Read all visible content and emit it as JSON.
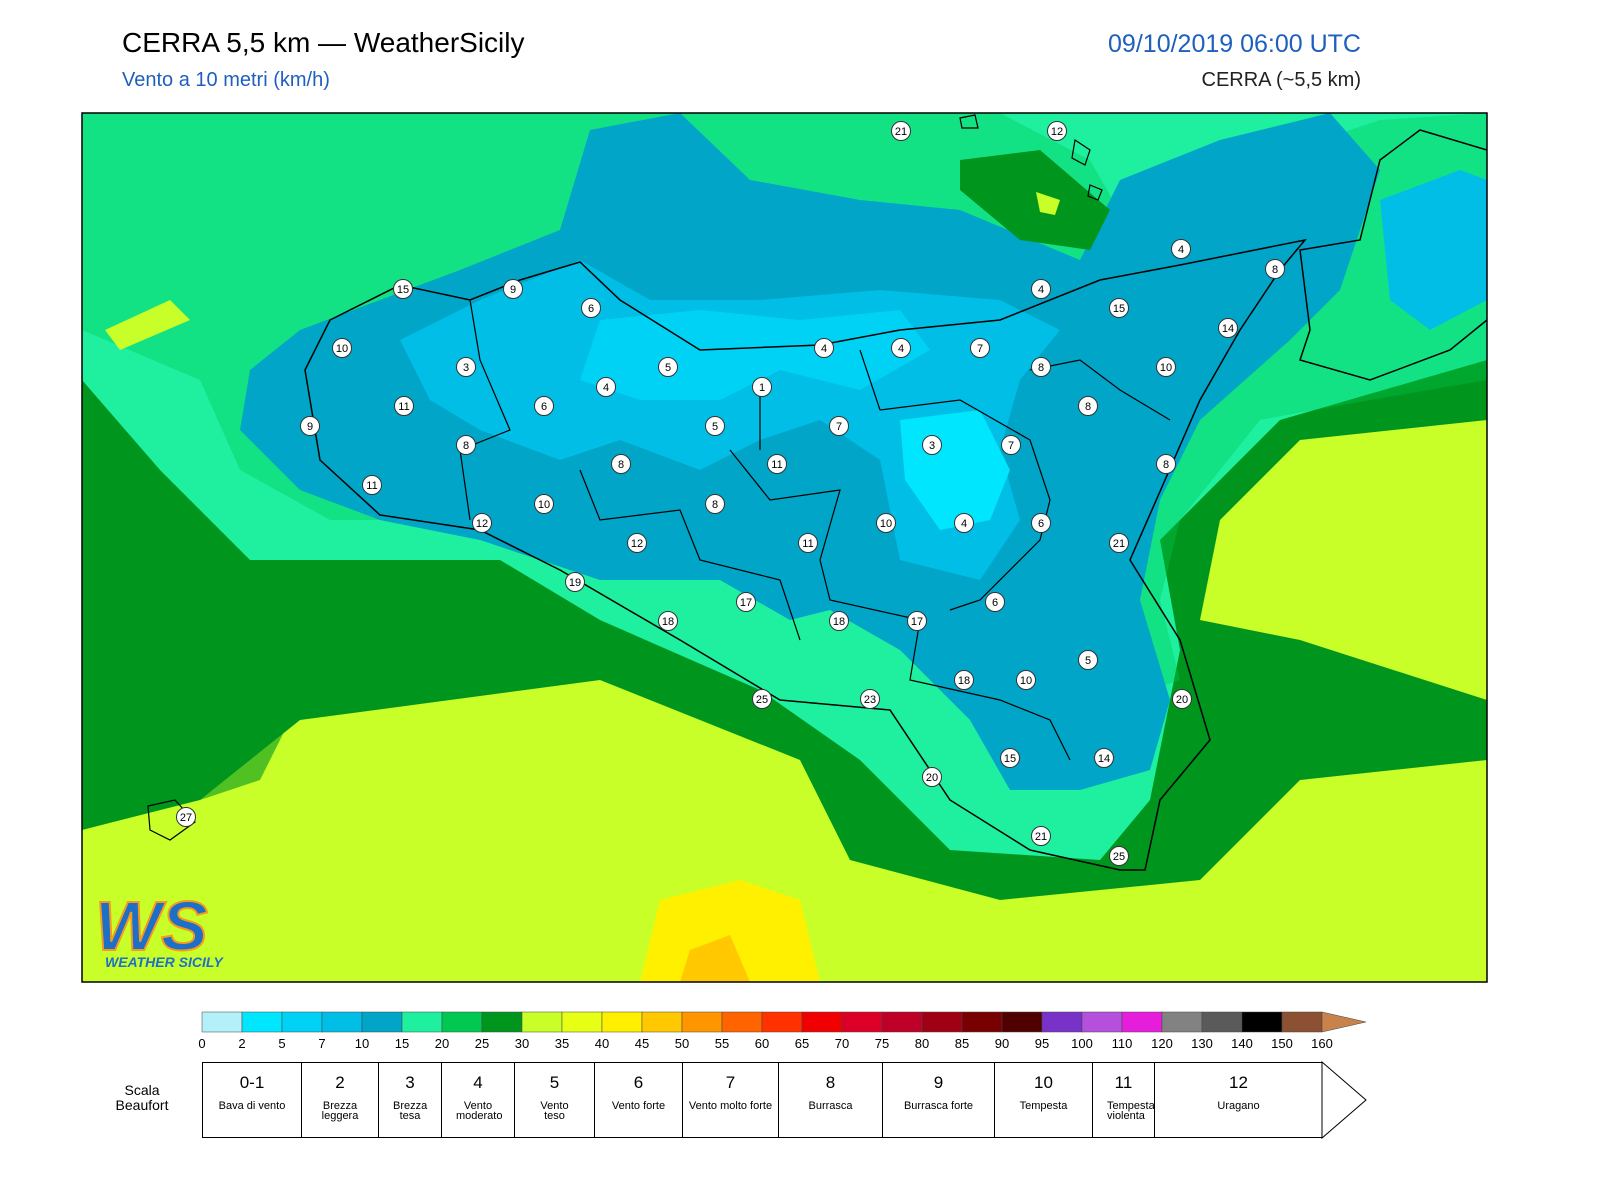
{
  "header": {
    "title": "CERRA 5,5 km — WeatherSicily",
    "subtitle": "Vento a 10 metri (km/h)",
    "datetime": "09/10/2019 06:00 UTC",
    "model": "CERRA (~5,5 km)"
  },
  "logo": {
    "letters": "WS",
    "name": "WEATHER SICILY"
  },
  "stations": [
    21,
    12,
    4,
    8,
    15,
    9,
    4,
    6,
    15,
    14,
    10,
    4,
    4,
    7,
    3,
    5,
    8,
    10,
    4,
    1,
    11,
    6,
    8,
    9,
    5,
    7,
    3,
    7,
    8,
    8,
    11,
    8,
    11,
    10,
    8,
    12,
    10,
    4,
    6,
    12,
    11,
    21,
    19,
    17,
    6,
    18,
    18,
    17,
    5,
    18,
    10,
    25,
    23,
    20,
    15,
    14,
    20,
    27,
    21,
    25
  ],
  "legend": {
    "breaks": [
      0,
      2,
      5,
      7,
      10,
      15,
      20,
      25,
      30,
      35,
      40,
      45,
      50,
      55,
      60,
      65,
      70,
      75,
      80,
      85,
      90,
      95,
      100,
      110,
      120,
      130,
      140,
      150,
      160
    ],
    "colors": [
      "#b4f0fa",
      "#00e6ff",
      "#00d2f5",
      "#00bee6",
      "#00a5c8",
      "#1ef0a0",
      "#00c850",
      "#00961e",
      "#c8ff28",
      "#e6ff14",
      "#fff000",
      "#ffc800",
      "#ff9600",
      "#ff6400",
      "#ff3200",
      "#f00000",
      "#dc0028",
      "#be0028",
      "#a00014",
      "#780000",
      "#500000",
      "#7832c8",
      "#b450dc",
      "#e61edc",
      "#828282",
      "#5a5a5a",
      "#000000",
      "#8c5032",
      "#c8824b"
    ]
  },
  "beaufort": {
    "label": "Scala Beaufort",
    "levels": [
      {
        "force": "0-1",
        "name": "Bava di vento"
      },
      {
        "force": 2,
        "name": "Brezza leggera"
      },
      {
        "force": 3,
        "name": "Brezza tesa"
      },
      {
        "force": 4,
        "name": "Vento moderato"
      },
      {
        "force": 5,
        "name": "Vento teso"
      },
      {
        "force": 6,
        "name": "Vento forte"
      },
      {
        "force": 7,
        "name": "Vento molto forte"
      },
      {
        "force": 8,
        "name": "Burrasca"
      },
      {
        "force": 9,
        "name": "Burrasca forte"
      },
      {
        "force": 10,
        "name": "Tempesta"
      },
      {
        "force": 11,
        "name": "Tempesta violenta"
      },
      {
        "force": 12,
        "name": "Uragano"
      }
    ]
  }
}
